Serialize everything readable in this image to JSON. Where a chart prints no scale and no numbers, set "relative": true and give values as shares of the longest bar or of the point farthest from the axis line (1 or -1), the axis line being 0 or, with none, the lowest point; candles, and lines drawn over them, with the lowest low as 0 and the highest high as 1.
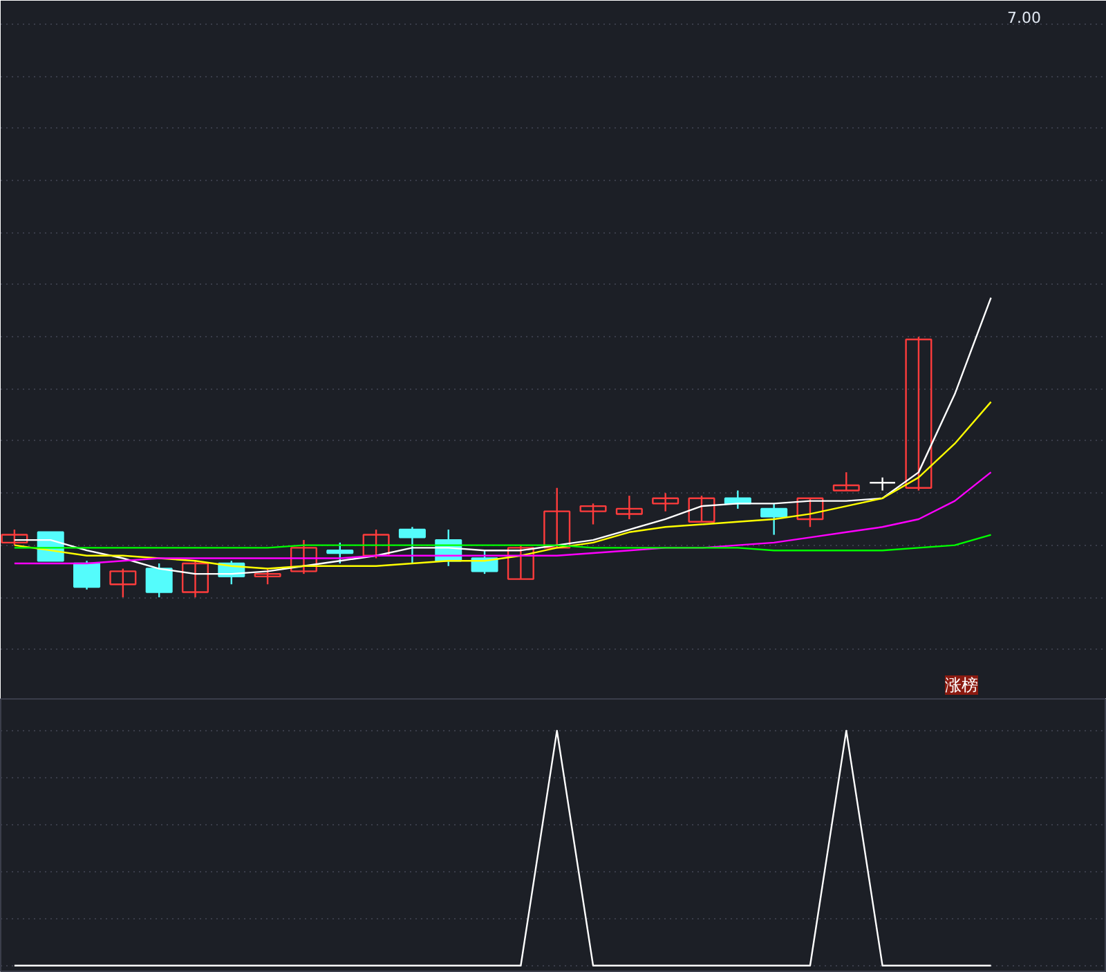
{
  "chart_data": [
    {
      "type": "candlestick",
      "relative": true,
      "grid": "y",
      "categories": [
        null,
        null,
        null,
        null,
        null,
        null,
        null,
        null,
        null,
        null,
        null,
        null,
        null,
        null,
        null,
        null,
        null,
        null,
        null,
        null,
        null,
        null,
        null,
        null,
        null,
        null,
        null,
        null
      ],
      "ohlc": [
        [
          0.21,
          0.26,
          0.2,
          0.24
        ],
        [
          0.25,
          0.25,
          0.14,
          0.14
        ],
        [
          0.13,
          0.14,
          0.03,
          0.04
        ],
        [
          0.05,
          0.11,
          0,
          0.1
        ],
        [
          0.11,
          0.13,
          0,
          0.02
        ],
        [
          0.02,
          0.14,
          0,
          0.13
        ],
        [
          0.13,
          0.14,
          0.05,
          0.08
        ],
        [
          0.08,
          0.11,
          0.05,
          0.09
        ],
        [
          0.1,
          0.22,
          0.09,
          0.19
        ],
        [
          0.18,
          0.21,
          0.13,
          0.17
        ],
        [
          0.16,
          0.26,
          0.15,
          0.24
        ],
        [
          0.26,
          0.27,
          0.13,
          0.23
        ],
        [
          0.22,
          0.26,
          0.12,
          0.14
        ],
        [
          0.15,
          0.18,
          0.09,
          0.1
        ],
        [
          0.07,
          0.2,
          0.07,
          0.19
        ],
        [
          0.19,
          0.42,
          0.19,
          0.33
        ],
        [
          0.33,
          0.36,
          0.28,
          0.35
        ],
        [
          0.32,
          0.39,
          0.3,
          0.34
        ],
        [
          0.36,
          0.4,
          0.33,
          0.38
        ],
        [
          0.29,
          0.39,
          0.29,
          0.38
        ],
        [
          0.38,
          0.41,
          0.34,
          0.36
        ],
        [
          0.34,
          0.36,
          0.24,
          0.31
        ],
        [
          0.3,
          0.38,
          0.27,
          0.38
        ],
        [
          0.41,
          0.48,
          0.41,
          0.43
        ],
        [
          0.44,
          0.46,
          0.41,
          0.44
        ],
        [
          0.42,
          1,
          0.41,
          0.99
        ],
        null,
        null
      ],
      "colors": [
        "#ff3c3c",
        "#54fcfc",
        "#54fcfc",
        "#ff3c3c",
        "#54fcfc",
        "#ff3c3c",
        "#54fcfc",
        "#ff3c3c",
        "#ff3c3c",
        "#54fcfc",
        "#ff3c3c",
        "#54fcfc",
        "#54fcfc",
        "#54fcfc",
        "#ff3c3c",
        "#ff3c3c",
        "#ff3c3c",
        "#ff3c3c",
        "#ff3c3c",
        "#ff3c3c",
        "#54fcfc",
        "#54fcfc",
        "#ff3c3c",
        "#ff3c3c",
        "#ffffff",
        "#ff3c3c",
        null,
        null
      ],
      "series": [
        {
          "type": "line",
          "color": "#ffffff",
          "values": [
            0.22,
            0.22,
            0.18,
            0.15,
            0.11,
            0.09,
            0.09,
            0.1,
            0.12,
            0.14,
            0.16,
            0.19,
            0.19,
            0.18,
            0.18,
            0.2,
            0.22,
            0.26,
            0.3,
            0.35,
            0.36,
            0.36,
            0.37,
            0.37,
            0.38,
            0.48,
            0.78,
            1.15
          ]
        },
        {
          "type": "line",
          "color": "#ffff00",
          "values": [
            0.2,
            0.18,
            0.16,
            0.16,
            0.15,
            0.14,
            0.12,
            0.11,
            0.12,
            0.12,
            0.12,
            0.13,
            0.14,
            0.14,
            0.16,
            0.19,
            0.21,
            0.25,
            0.27,
            0.28,
            0.29,
            0.3,
            0.32,
            0.35,
            0.38,
            0.46,
            0.59,
            0.75
          ]
        },
        {
          "type": "line",
          "color": "#ff00ff",
          "values": [
            0.13,
            0.13,
            0.13,
            0.14,
            0.15,
            0.15,
            0.15,
            0.15,
            0.15,
            0.15,
            0.16,
            0.16,
            0.16,
            0.16,
            0.16,
            0.16,
            0.17,
            0.18,
            0.19,
            0.19,
            0.2,
            0.21,
            0.23,
            0.25,
            0.27,
            0.3,
            0.37,
            0.48
          ]
        },
        {
          "type": "line",
          "color": "#00ff00",
          "values": [
            0.19,
            0.19,
            0.19,
            0.19,
            0.19,
            0.19,
            0.19,
            0.19,
            0.2,
            0.2,
            0.2,
            0.2,
            0.2,
            0.2,
            0.2,
            0.2,
            0.19,
            0.19,
            0.19,
            0.19,
            0.19,
            0.18,
            0.18,
            0.18,
            0.18,
            0.19,
            0.2,
            0.24
          ]
        }
      ],
      "annotations": [
        "7.00",
        "涨榜"
      ]
    },
    {
      "type": "line",
      "relative": true,
      "grid": "y",
      "categories": [
        null,
        null,
        null,
        null,
        null,
        null,
        null,
        null,
        null,
        null,
        null,
        null,
        null,
        null,
        null,
        null,
        null,
        null,
        null,
        null,
        null,
        null,
        null,
        null,
        null,
        null,
        null,
        null
      ],
      "series": [
        {
          "color": "#ffffff",
          "values": [
            0,
            0,
            0,
            0,
            0,
            0,
            0,
            0,
            0,
            0,
            0,
            0,
            0,
            0,
            0,
            1,
            0,
            0,
            0,
            0,
            0,
            0,
            0,
            1,
            0,
            0,
            0,
            0
          ]
        }
      ]
    }
  ]
}
